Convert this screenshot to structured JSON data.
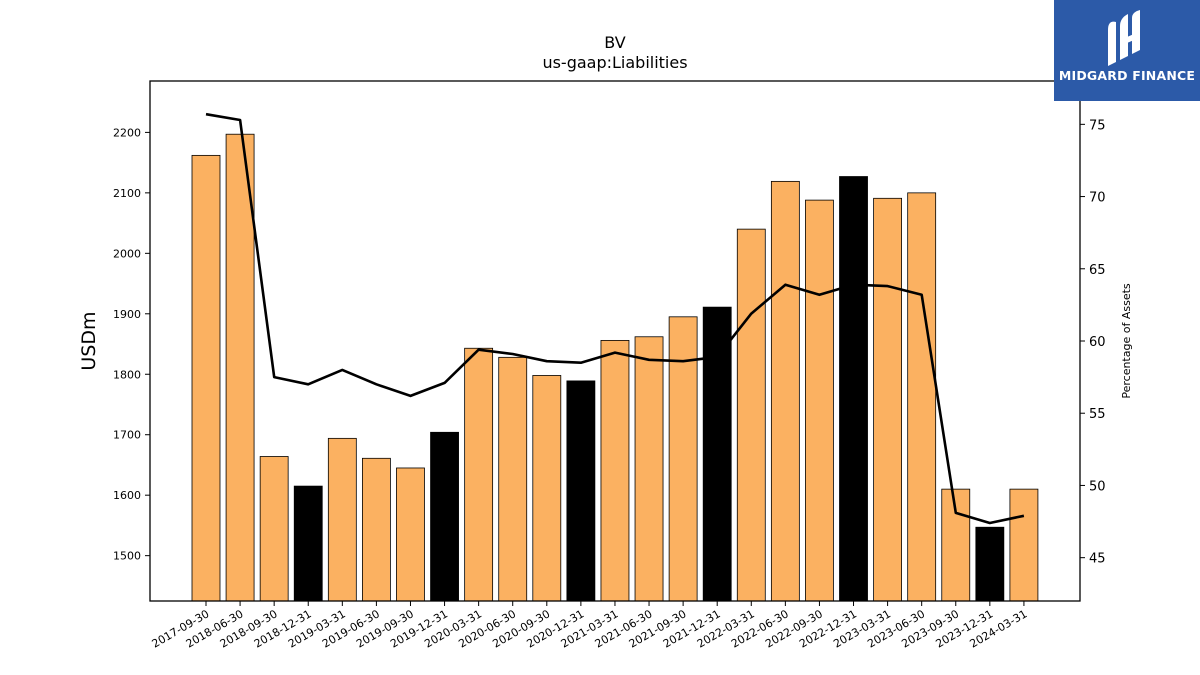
{
  "chart_data": {
    "type": "bar",
    "title": "BV",
    "subtitle": "us-gaap:Liabilities",
    "ylabel": "USDm",
    "y2label": "Percentage of Assets",
    "ylim": [
      1425,
      2285
    ],
    "y2lim": [
      42,
      78
    ],
    "yticks": [
      1500,
      1600,
      1700,
      1800,
      1900,
      2000,
      2100,
      2200
    ],
    "y2ticks": [
      45,
      50,
      55,
      60,
      65,
      70,
      75
    ],
    "categories": [
      "2017-09-30",
      "2018-06-30",
      "2018-09-30",
      "2018-12-31",
      "2019-03-31",
      "2019-06-30",
      "2019-09-30",
      "2019-12-31",
      "2020-03-31",
      "2020-06-30",
      "2020-09-30",
      "2020-12-31",
      "2021-03-31",
      "2021-06-30",
      "2021-09-30",
      "2021-12-31",
      "2022-03-31",
      "2022-06-30",
      "2022-09-30",
      "2022-12-31",
      "2023-03-31",
      "2023-06-30",
      "2023-09-30",
      "2023-12-31",
      "2024-03-31"
    ],
    "series": [
      {
        "values": [
          2162,
          2197,
          1664,
          1615,
          1694,
          1661,
          1645,
          1704,
          1843,
          1828,
          1798,
          1789,
          1856,
          1862,
          1895,
          1911,
          2040,
          2119,
          2088,
          2127,
          2091,
          2100,
          1610,
          1547,
          1610
        ],
        "colors": [
          "#fbb161",
          "#fbb161",
          "#fbb161",
          "#000000",
          "#fbb161",
          "#fbb161",
          "#fbb161",
          "#000000",
          "#fbb161",
          "#fbb161",
          "#fbb161",
          "#000000",
          "#fbb161",
          "#fbb161",
          "#fbb161",
          "#000000",
          "#fbb161",
          "#fbb161",
          "#fbb161",
          "#000000",
          "#fbb161",
          "#fbb161",
          "#fbb161",
          "#000000",
          "#fbb161"
        ]
      },
      {
        "type": "line",
        "axis": "right",
        "color": "#000000",
        "values": [
          75.7,
          75.3,
          57.5,
          57.0,
          58.0,
          57.0,
          56.2,
          57.1,
          59.4,
          59.1,
          58.6,
          58.5,
          59.2,
          58.7,
          58.6,
          58.9,
          61.9,
          63.9,
          63.2,
          63.9,
          63.8,
          63.2,
          48.1,
          47.4,
          47.9
        ]
      }
    ]
  },
  "logo": {
    "text": "MIDGARD FINANCE"
  }
}
